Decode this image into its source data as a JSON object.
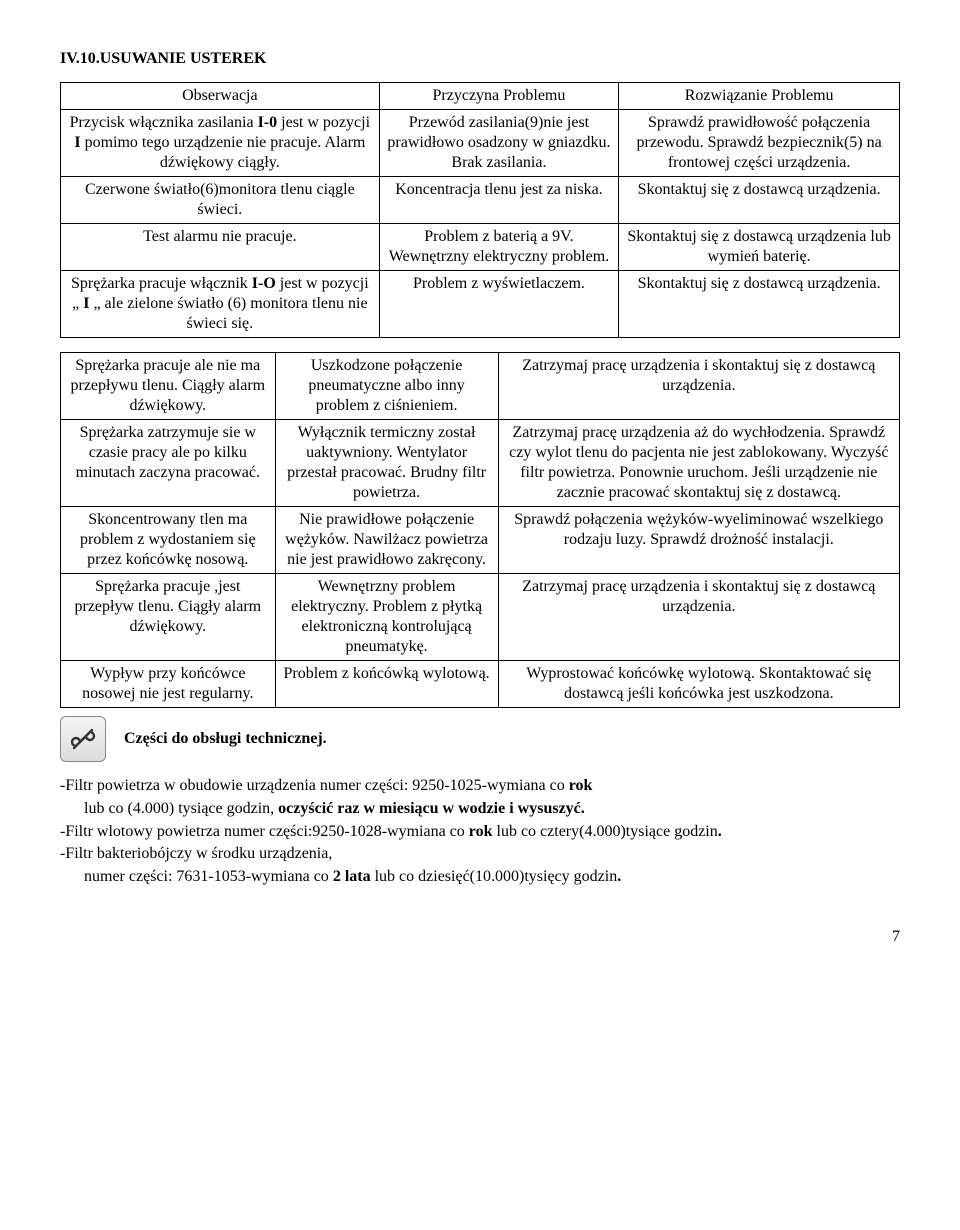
{
  "heading": "IV.10.USUWANIE USTEREK",
  "table1": {
    "head": {
      "c0": "Obserwacja",
      "c1": "Przyczyna Problemu",
      "c2": "Rozwiązanie Problemu"
    },
    "rows": [
      {
        "c0": "Przycisk włącznika zasilania <b>I-0</b> jest w pozycji <b>I</b> pomimo tego urządzenie nie pracuje. Alarm dźwiękowy ciągły.",
        "c1": "Przewód zasilania(9)nie jest prawidłowo osadzony w gniazdku. Brak zasilania.",
        "c2": "Sprawdź  prawidłowość połączenia przewodu. Sprawdź bezpiecznik(5) na frontowej części urządzenia."
      },
      {
        "c0": "Czerwone światło(6)monitora tlenu ciągle świeci.",
        "c1": "Koncentracja tlenu jest za niska.",
        "c2": "Skontaktuj się z dostawcą urządzenia."
      },
      {
        "c0": "Test alarmu nie  pracuje.",
        "c1": "Problem z baterią a 9V. Wewnętrzny elektryczny problem.",
        "c2": "Skontaktuj się z dostawcą urządzenia lub wymień baterię."
      },
      {
        "c0": "Sprężarka pracuje włącznik <b>I-O</b> jest w pozycji „ <b>I</b> „ ale zielone światło (6) monitora tlenu nie świeci się.",
        "c1": "Problem z wyświetlaczem.",
        "c2": "Skontaktuj się z dostawcą urządzenia."
      }
    ]
  },
  "table2": {
    "rows": [
      {
        "c0": "Sprężarka pracuje ale nie ma przepływu tlenu. Ciągły alarm dźwiękowy.",
        "c1": "Uszkodzone połączenie pneumatyczne albo inny problem z ciśnieniem.",
        "c2": "Zatrzymaj pracę urządzenia i skontaktuj się z dostawcą urządzenia."
      },
      {
        "c0": "Sprężarka zatrzymuje sie w czasie pracy ale po kilku minutach zaczyna pracować.",
        "c1": "Wyłącznik termiczny został uaktywniony. Wentylator przestał pracować. Brudny filtr  powietrza.",
        "c2": "Zatrzymaj pracę urządzenia aż do wychłodzenia. Sprawdź czy wylot tlenu do pacjenta nie jest zablokowany. Wyczyść filtr powietrza. Ponownie uruchom. Jeśli urządzenie nie zacznie pracować skontaktuj się z dostawcą."
      },
      {
        "c0": "Skoncentrowany tlen ma problem z wydostaniem się przez końcówkę nosową.",
        "c1": "Nie prawidłowe połączenie wężyków. Nawilżacz powietrza nie jest prawidłowo zakręcony.",
        "c2": "Sprawdź  połączenia wężyków-wyeliminować wszelkiego rodzaju luzy. Sprawdź drożność instalacji."
      },
      {
        "c0": "Sprężarka pracuje ,jest przepływ tlenu. Ciągły alarm dźwiękowy.",
        "c1": "Wewnętrzny problem elektryczny. Problem z płytką elektroniczną kontrolującą pneumatykę.",
        "c2": "Zatrzymaj pracę urządzenia i skontaktuj się z dostawcą urządzenia."
      },
      {
        "c0": "Wypływ przy końcówce nosowej nie jest regularny.",
        "c1": "Problem z końcówką wylotową.",
        "c2": "Wyprostować końcówkę wylotową. Skontaktować się dostawcą  jeśli końcówka jest uszkodzona."
      }
    ]
  },
  "iconCaption": "Części do obsługi technicznej.",
  "paras": {
    "p1a": "-Filtr powietrza w obudowie urządzenia numer części: 9250-1025-wymiana co ",
    "p1b": "rok",
    "p2a": "lub co (4.000) tysiące godzin, ",
    "p2b": "oczyścić raz w miesiącu w wodzie i wysuszyć.",
    "p3a": "-Filtr wlotowy powietrza numer części:9250-1028-wymiana co ",
    "p3b": "rok",
    "p3c": " lub co cztery(4.000)tysiące godzin",
    "p3d": ".",
    "p4": "-Filtr bakteriobójczy w środku urządzenia,",
    "p5a": "numer części: 7631-1053-wymiana co ",
    "p5b": "2 lata",
    "p5c": " lub co dziesięć(10.000)tysięcy godzin",
    "p5d": "."
  },
  "pageNumber": "7"
}
